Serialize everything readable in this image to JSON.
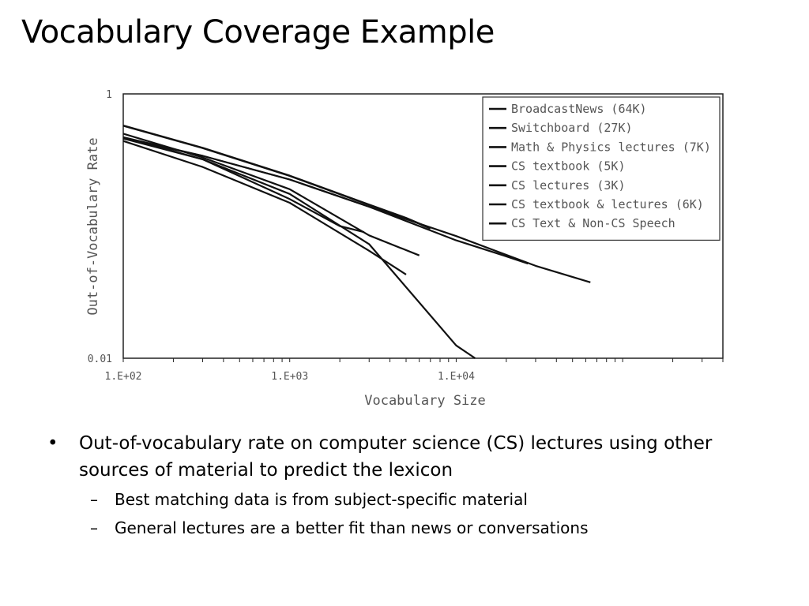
{
  "slide": {
    "title": "Vocabulary Coverage Example"
  },
  "bullets": [
    {
      "marker": "•",
      "text": "Out-of-vocabulary rate on computer science (CS) lectures using other sources of material to predict the lexicon",
      "subs": [
        {
          "marker": "–",
          "text": "Best matching data is from subject-specific material"
        },
        {
          "marker": "–",
          "text": "General lectures are a better fit than news or conversations"
        }
      ]
    }
  ],
  "chart_data": {
    "type": "line",
    "xlabel": "Vocabulary Size",
    "ylabel": "Out-of-Vocabulary Rate",
    "x_scale": "log",
    "y_scale": "log",
    "xlim": [
      100,
      400000
    ],
    "ylim": [
      0.01,
      1
    ],
    "x_tick_labels": [
      {
        "value": 100,
        "label": "1.E+02"
      },
      {
        "value": 1000,
        "label": "1.E+03"
      },
      {
        "value": 10000,
        "label": "1.E+04"
      }
    ],
    "y_tick_labels": [
      {
        "value": 1,
        "label": "1"
      },
      {
        "value": 0.01,
        "label": "0.01"
      }
    ],
    "grid": false,
    "legend_position": "top-right",
    "line_color": "#111111",
    "series": [
      {
        "name": "BroadcastNews (64K)",
        "x": [
          100,
          300,
          1000,
          3000,
          10000,
          30000,
          64000
        ],
        "y": [
          0.46,
          0.34,
          0.225,
          0.14,
          0.084,
          0.05,
          0.0375
        ]
      },
      {
        "name": "Switchboard (27K)",
        "x": [
          100,
          300,
          1000,
          3000,
          10000,
          20000,
          27000
        ],
        "y": [
          0.47,
          0.34,
          0.225,
          0.14,
          0.078,
          0.059,
          0.052
        ]
      },
      {
        "name": "Math & Physics lectures (7K)",
        "x": [
          100,
          300,
          1000,
          3000,
          5000,
          7000
        ],
        "y": [
          0.575,
          0.39,
          0.24,
          0.145,
          0.115,
          0.096
        ]
      },
      {
        "name": "CS textbook (5K)",
        "x": [
          100,
          300,
          1000,
          3000,
          5000
        ],
        "y": [
          0.44,
          0.28,
          0.15,
          0.065,
          0.043
        ]
      },
      {
        "name": "CS lectures (3K)",
        "x": [
          100,
          300,
          1000,
          2000,
          2800
        ],
        "y": [
          0.46,
          0.32,
          0.16,
          0.1,
          0.09
        ]
      },
      {
        "name": "CS textbook & lectures (6K)",
        "x": [
          100,
          300,
          1000,
          3000,
          6000
        ],
        "y": [
          0.5,
          0.33,
          0.19,
          0.085,
          0.06
        ]
      },
      {
        "name": "CS Text & Non-CS Speech",
        "x": [
          100,
          300,
          1000,
          3000,
          10000,
          13000
        ],
        "y": [
          0.47,
          0.32,
          0.175,
          0.073,
          0.0125,
          0.01
        ]
      }
    ]
  }
}
